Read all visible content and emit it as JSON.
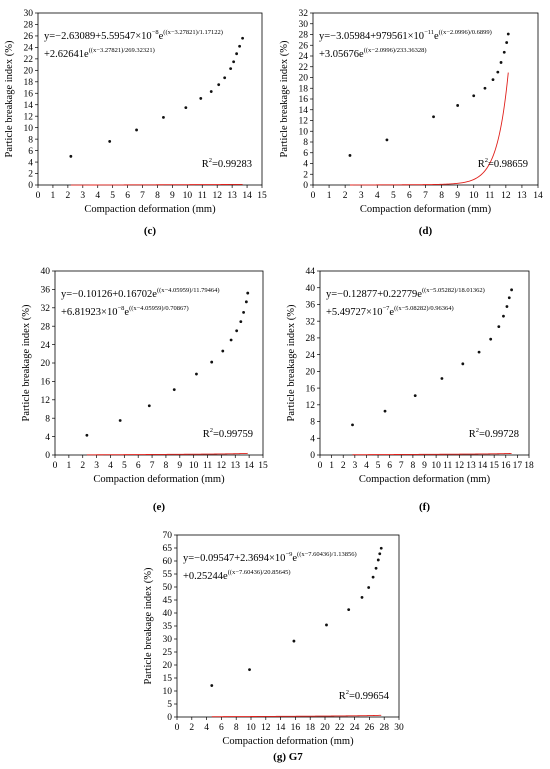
{
  "chart_data": [
    {
      "type": "scatter",
      "panel": "c",
      "caption": "(c)",
      "xlabel": "Compaction deformation (mm)",
      "ylabel": "Particle breakage index (%)",
      "xlim": [
        0,
        15
      ],
      "ylim": [
        0,
        30
      ],
      "xticks": [
        0,
        1,
        2,
        3,
        4,
        5,
        6,
        7,
        8,
        9,
        10,
        11,
        12,
        13,
        14,
        15
      ],
      "yticks": [
        0,
        2,
        4,
        6,
        8,
        10,
        12,
        14,
        16,
        18,
        20,
        22,
        24,
        26,
        28,
        30
      ],
      "equation": {
        "line1_main": "y=−2.63089+5.59547×10",
        "line1_exp": "−8",
        "line1_e": "e",
        "line1_sup": "((x−3.27821)/1.17122)",
        "line2_main": "+2.62641e",
        "line2_sup": "((x−3.27821)/269.32321)"
      },
      "r2_label": "R",
      "r2_sup": "2",
      "r2_value": "=0.99283",
      "model": {
        "a": -2.63089,
        "b": 5.59547e-08,
        "c": 3.27821,
        "d": 1.17122,
        "f": 2.62641,
        "g": 3.27821,
        "h": 269.32321
      },
      "x": [
        2.2,
        4.8,
        6.6,
        8.4,
        9.9,
        10.9,
        11.6,
        12.1,
        12.5,
        12.9,
        13.1,
        13.3,
        13.5,
        13.7
      ],
      "y": [
        5.0,
        7.6,
        9.6,
        11.8,
        13.5,
        15.1,
        16.3,
        17.5,
        18.7,
        20.3,
        21.5,
        22.9,
        24.2,
        25.6
      ]
    },
    {
      "type": "scatter",
      "panel": "d",
      "caption": "(d)",
      "xlabel": "Compaction deformation (mm)",
      "ylabel": "Particle breakage index (%)",
      "xlim": [
        0,
        14
      ],
      "ylim": [
        0,
        32
      ],
      "xticks": [
        0,
        1,
        2,
        3,
        4,
        5,
        6,
        7,
        8,
        9,
        10,
        11,
        12,
        13,
        14
      ],
      "yticks": [
        0,
        2,
        4,
        6,
        8,
        10,
        12,
        14,
        16,
        18,
        20,
        22,
        24,
        26,
        28,
        30,
        32
      ],
      "equation": {
        "line1_main": "y=−3.05984+979561×10",
        "line1_exp": "−11",
        "line1_e": "e",
        "line1_sup": "((x−2.0996)/0.6899)",
        "line2_main": "+3.05676e",
        "line2_sup": "((x−2.0996)/233.36328)"
      },
      "r2_label": "R",
      "r2_sup": "2",
      "r2_value": "=0.98659",
      "model": {
        "a": -3.05984,
        "b": 9.79561e-06,
        "c": 2.0996,
        "d": 0.6899,
        "f": 3.05676,
        "g": 2.0996,
        "h": 233.36328
      },
      "x": [
        2.3,
        4.6,
        7.5,
        9.0,
        10.0,
        10.7,
        11.2,
        11.5,
        11.7,
        11.9,
        12.05,
        12.15
      ],
      "y": [
        5.5,
        8.4,
        12.7,
        14.8,
        16.6,
        18.0,
        19.6,
        21.0,
        22.8,
        24.7,
        26.5,
        28.1
      ]
    },
    {
      "type": "scatter",
      "panel": "e",
      "caption": "(e)",
      "xlabel": "Compaction deformation (mm)",
      "ylabel": "Particle breakage index (%)",
      "xlim": [
        0,
        15
      ],
      "ylim": [
        0,
        40
      ],
      "xticks": [
        0,
        1,
        2,
        3,
        4,
        5,
        6,
        7,
        8,
        9,
        10,
        11,
        12,
        13,
        14,
        15
      ],
      "yticks": [
        0,
        4,
        8,
        12,
        16,
        20,
        24,
        28,
        32,
        36,
        40
      ],
      "equation": {
        "line1_main": "y=−0.10126+0.16702e",
        "line1_exp": "",
        "line1_e": "",
        "line1_sup": "((x−4.05959)/11.79464)",
        "line2_main": "+6.81923×10",
        "line2_exp": "−8",
        "line2_e": "e",
        "line2_sup": "((x−4.05959)/0.70867)"
      },
      "r2_label": "R",
      "r2_sup": "2",
      "r2_value": "=0.99759",
      "model": {
        "a": -0.10126,
        "b": 0.16702,
        "c": 4.05959,
        "d": 11.79464,
        "f": 6.81923e-08,
        "g": 4.05959,
        "h": 0.70867
      },
      "x": [
        2.3,
        4.7,
        6.8,
        8.6,
        10.2,
        11.3,
        12.1,
        12.7,
        13.1,
        13.4,
        13.6,
        13.8,
        13.9
      ],
      "y": [
        4.3,
        7.5,
        10.7,
        14.2,
        17.6,
        20.2,
        22.6,
        25.0,
        27.0,
        29.0,
        31.0,
        33.3,
        35.2
      ]
    },
    {
      "type": "scatter",
      "panel": "f",
      "caption": "(f)",
      "xlabel": "Compaction deformation (mm)",
      "ylabel": "Particle breakage index (%)",
      "xlim": [
        0,
        18
      ],
      "ylim": [
        0,
        44
      ],
      "xticks": [
        0,
        1,
        2,
        3,
        4,
        5,
        6,
        7,
        8,
        9,
        10,
        11,
        12,
        13,
        14,
        15,
        16,
        17,
        18
      ],
      "yticks": [
        0,
        4,
        8,
        12,
        16,
        20,
        24,
        28,
        32,
        36,
        40,
        44
      ],
      "equation": {
        "line1_main": "y=−0.12877+0.22779e",
        "line1_exp": "",
        "line1_e": "",
        "line1_sup": "((x−5.05282)/18.01362)",
        "line2_main": "+5.49727×10",
        "line2_exp": "−7",
        "line2_e": "e",
        "line2_sup": "((x−5.08282)/0.96364)"
      },
      "r2_label": "R",
      "r2_sup": "2",
      "r2_value": "=0.99728",
      "model": {
        "a": -0.12877,
        "b": 0.22779,
        "c": 5.05282,
        "d": 18.01362,
        "f": 5.49727e-07,
        "g": 5.08282,
        "h": 0.96364
      },
      "x": [
        2.8,
        5.6,
        8.2,
        10.5,
        12.3,
        13.7,
        14.7,
        15.4,
        15.8,
        16.1,
        16.3,
        16.5
      ],
      "y": [
        7.2,
        10.5,
        14.2,
        18.3,
        21.8,
        24.6,
        27.7,
        30.7,
        33.2,
        35.5,
        37.6,
        39.5
      ]
    },
    {
      "type": "scatter",
      "panel": "g",
      "caption": "(g) G7",
      "xlabel": "Compaction deformation (mm)",
      "ylabel": "Particle breakage index (%)",
      "xlim": [
        0,
        30
      ],
      "ylim": [
        0,
        70
      ],
      "xticks": [
        0,
        2,
        4,
        6,
        8,
        10,
        12,
        14,
        16,
        18,
        20,
        22,
        24,
        26,
        28,
        30
      ],
      "yticks": [
        0,
        5,
        10,
        15,
        20,
        25,
        30,
        35,
        40,
        45,
        50,
        55,
        60,
        65,
        70
      ],
      "equation": {
        "line1_main": "y=−0.09547+2.3694×10",
        "line1_exp": "−9",
        "line1_e": "e",
        "line1_sup": "((x−7.60436)/1.13856)",
        "line2_main": "+0.25244e",
        "line2_sup": "((x−7.60436)/20.85645)"
      },
      "r2_label": "R",
      "r2_sup": "2",
      "r2_value": "=0.99654",
      "model": {
        "a": -0.09547,
        "b": 2.3694e-09,
        "c": 7.60436,
        "d": 1.13856,
        "f": 0.25244,
        "g": 7.60436,
        "h": 20.85645
      },
      "x": [
        4.7,
        9.8,
        15.8,
        20.2,
        23.2,
        25.0,
        25.9,
        26.5,
        26.9,
        27.2,
        27.4,
        27.6
      ],
      "y": [
        12.1,
        18.2,
        29.2,
        35.4,
        41.3,
        46.0,
        49.8,
        53.8,
        57.2,
        60.4,
        62.8,
        64.9
      ]
    }
  ]
}
